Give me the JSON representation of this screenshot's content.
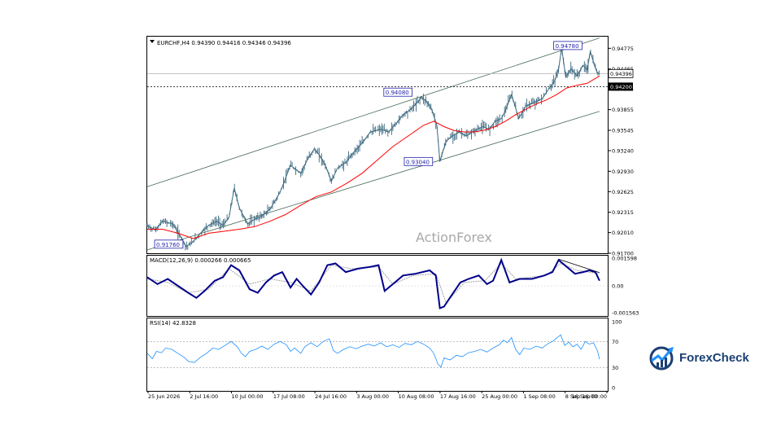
{
  "colors": {
    "price": "#3d6a80",
    "ma": "#ff0000",
    "channel": "#486a56",
    "macd": "#00008b",
    "signal": "#a0a0a0",
    "rsi": "#1e90ff",
    "label_border": "#2222aa",
    "brand": "#1b3f73",
    "brand_accent": "#1e90ff"
  },
  "chart_data": {
    "type": "line",
    "header": "EURCHF,H4  0.94390 0.94416 0.94346 0.94396",
    "watermark": "ActionForex",
    "x_tick_labels": [
      "25 Jun 2026",
      "2 Jul 16:00",
      "10 Jul 00:00",
      "17 Jul 08:00",
      "24 Jul 16:00",
      "3 Aug 00:00",
      "10 Aug 08:00",
      "17 Aug 16:00",
      "25 Aug 00:00",
      "1 Sep 08:00",
      "8 Sep 16:00",
      "16 Sep 00:00"
    ],
    "price_panel": {
      "y_ticks": [
        "0.94775",
        "0.94465",
        "0.94165",
        "0.93855",
        "0.93545",
        "0.93240",
        "0.92930",
        "0.92625",
        "0.92315",
        "0.92010",
        "0.91700"
      ],
      "ylim": [
        0.917,
        0.9495
      ],
      "last_price": "0.94396",
      "horizontal_level": "0.94200",
      "annotations": [
        "0.91760",
        "0.94080",
        "0.93040",
        "0.94780"
      ],
      "price_path": [
        [
          0,
          0.9211
        ],
        [
          8,
          0.9205
        ],
        [
          15,
          0.9218
        ],
        [
          25,
          0.9214
        ],
        [
          33,
          0.9194
        ],
        [
          38,
          0.918
        ],
        [
          44,
          0.9186
        ],
        [
          52,
          0.92
        ],
        [
          60,
          0.9212
        ],
        [
          68,
          0.9218
        ],
        [
          74,
          0.9212
        ],
        [
          80,
          0.9224
        ],
        [
          85,
          0.9268
        ],
        [
          90,
          0.9238
        ],
        [
          98,
          0.9214
        ],
        [
          106,
          0.9222
        ],
        [
          112,
          0.9226
        ],
        [
          120,
          0.9236
        ],
        [
          130,
          0.9262
        ],
        [
          140,
          0.9302
        ],
        [
          150,
          0.929
        ],
        [
          157,
          0.9312
        ],
        [
          163,
          0.9326
        ],
        [
          168,
          0.9318
        ],
        [
          174,
          0.9302
        ],
        [
          180,
          0.9278
        ],
        [
          186,
          0.9298
        ],
        [
          194,
          0.9306
        ],
        [
          202,
          0.9322
        ],
        [
          210,
          0.9335
        ],
        [
          218,
          0.9352
        ],
        [
          228,
          0.9356
        ],
        [
          236,
          0.9352
        ],
        [
          243,
          0.9364
        ],
        [
          250,
          0.9378
        ],
        [
          256,
          0.9384
        ],
        [
          262,
          0.9393
        ],
        [
          268,
          0.9404
        ],
        [
          273,
          0.9398
        ],
        [
          278,
          0.9386
        ],
        [
          283,
          0.9362
        ],
        [
          286,
          0.9308
        ],
        [
          292,
          0.9338
        ],
        [
          298,
          0.9346
        ],
        [
          305,
          0.9352
        ],
        [
          312,
          0.9346
        ],
        [
          320,
          0.9354
        ],
        [
          328,
          0.936
        ],
        [
          334,
          0.9356
        ],
        [
          340,
          0.9368
        ],
        [
          346,
          0.9372
        ],
        [
          350,
          0.9384
        ],
        [
          356,
          0.9408
        ],
        [
          360,
          0.9388
        ],
        [
          363,
          0.9372
        ],
        [
          370,
          0.9391
        ],
        [
          378,
          0.9396
        ],
        [
          386,
          0.9402
        ],
        [
          393,
          0.9418
        ],
        [
          398,
          0.9428
        ],
        [
          402,
          0.9446
        ],
        [
          405,
          0.9478
        ],
        [
          409,
          0.9434
        ],
        [
          414,
          0.9447
        ],
        [
          420,
          0.9436
        ],
        [
          426,
          0.9452
        ],
        [
          430,
          0.9445
        ],
        [
          433,
          0.9473
        ],
        [
          437,
          0.9452
        ],
        [
          440,
          0.944
        ],
        [
          442,
          0.94396
        ]
      ],
      "ma_path": [
        [
          0,
          0.9206
        ],
        [
          15,
          0.9206
        ],
        [
          30,
          0.92
        ],
        [
          45,
          0.9192
        ],
        [
          60,
          0.92
        ],
        [
          75,
          0.9203
        ],
        [
          90,
          0.9206
        ],
        [
          105,
          0.921
        ],
        [
          120,
          0.9218
        ],
        [
          135,
          0.9228
        ],
        [
          150,
          0.9242
        ],
        [
          165,
          0.9255
        ],
        [
          180,
          0.9262
        ],
        [
          195,
          0.9275
        ],
        [
          210,
          0.929
        ],
        [
          225,
          0.931
        ],
        [
          240,
          0.933
        ],
        [
          255,
          0.9346
        ],
        [
          270,
          0.9362
        ],
        [
          280,
          0.9368
        ],
        [
          290,
          0.936
        ],
        [
          300,
          0.9354
        ],
        [
          310,
          0.9352
        ],
        [
          320,
          0.9352
        ],
        [
          330,
          0.9355
        ],
        [
          340,
          0.936
        ],
        [
          350,
          0.9368
        ],
        [
          360,
          0.9378
        ],
        [
          370,
          0.9386
        ],
        [
          380,
          0.9394
        ],
        [
          390,
          0.94
        ],
        [
          400,
          0.9408
        ],
        [
          410,
          0.9418
        ],
        [
          420,
          0.9422
        ],
        [
          430,
          0.9425
        ],
        [
          442,
          0.9436
        ]
      ],
      "channel_upper": [
        [
          0,
          0.927
        ],
        [
          442,
          0.9493
        ]
      ],
      "channel_lower": [
        [
          0,
          0.9175
        ],
        [
          442,
          0.9383
        ]
      ]
    },
    "macd_panel": {
      "label": "MACD(12,26,9) 0.000266 0.000665",
      "y_ticks": [
        "0.001598",
        "0.00",
        "-0.001563"
      ],
      "ylim": [
        -0.00175,
        0.00175
      ],
      "macd_path": [
        [
          0,
          0.0005
        ],
        [
          10,
          0.0001
        ],
        [
          20,
          0.0004
        ],
        [
          30,
          0.0
        ],
        [
          40,
          -0.0004
        ],
        [
          48,
          -0.0007
        ],
        [
          56,
          -0.0003
        ],
        [
          66,
          0.0003
        ],
        [
          74,
          0.0005
        ],
        [
          82,
          0.0012
        ],
        [
          90,
          0.0009
        ],
        [
          100,
          -0.0002
        ],
        [
          108,
          -0.0004
        ],
        [
          116,
          0.0002
        ],
        [
          124,
          0.0006
        ],
        [
          132,
          0.0008
        ],
        [
          140,
          -0.0001
        ],
        [
          146,
          0.0004
        ],
        [
          152,
          0.0
        ],
        [
          160,
          -0.0005
        ],
        [
          168,
          0.0002
        ],
        [
          176,
          0.0012
        ],
        [
          184,
          0.0013
        ],
        [
          194,
          0.0008
        ],
        [
          206,
          0.001
        ],
        [
          218,
          0.0011
        ],
        [
          226,
          0.0012
        ],
        [
          232,
          -0.0003
        ],
        [
          240,
          0.0001
        ],
        [
          250,
          0.0006
        ],
        [
          262,
          0.0007
        ],
        [
          276,
          0.0009
        ],
        [
          282,
          0.0006
        ],
        [
          286,
          -0.0013
        ],
        [
          290,
          -0.0012
        ],
        [
          298,
          -0.0005
        ],
        [
          306,
          0.0002
        ],
        [
          314,
          0.0004
        ],
        [
          324,
          0.0006
        ],
        [
          332,
          0.0001
        ],
        [
          338,
          0.0003
        ],
        [
          346,
          0.0015
        ],
        [
          354,
          0.0002
        ],
        [
          364,
          0.0004
        ],
        [
          376,
          0.0004
        ],
        [
          388,
          0.0006
        ],
        [
          396,
          0.0008
        ],
        [
          402,
          0.0015
        ],
        [
          410,
          0.0011
        ],
        [
          418,
          0.0007
        ],
        [
          426,
          0.0008
        ],
        [
          432,
          0.0009
        ],
        [
          438,
          0.0008
        ],
        [
          442,
          0.0003
        ]
      ],
      "signal_path": [
        [
          0,
          0.0004
        ],
        [
          20,
          0.0002
        ],
        [
          40,
          -0.0004
        ],
        [
          60,
          -0.0002
        ],
        [
          80,
          0.001
        ],
        [
          100,
          0.0001
        ],
        [
          120,
          0.0004
        ],
        [
          140,
          0.0002
        ],
        [
          160,
          -0.0003
        ],
        [
          180,
          0.0012
        ],
        [
          200,
          0.001
        ],
        [
          226,
          0.0011
        ],
        [
          240,
          0.0001
        ],
        [
          260,
          0.0006
        ],
        [
          282,
          0.0007
        ],
        [
          292,
          -0.001
        ],
        [
          310,
          0.0002
        ],
        [
          330,
          0.0003
        ],
        [
          346,
          0.0013
        ],
        [
          360,
          0.0004
        ],
        [
          390,
          0.0006
        ],
        [
          404,
          0.0013
        ],
        [
          420,
          0.0009
        ],
        [
          442,
          0.0007
        ]
      ],
      "trendline": [
        [
          402,
          0.00155
        ],
        [
          442,
          0.00077
        ]
      ]
    },
    "rsi_panel": {
      "label": "RSI(14) 42.8328",
      "y_ticks": [
        "100",
        "70",
        "30",
        "0"
      ],
      "levels": [
        70,
        30
      ],
      "ylim": [
        0,
        100
      ],
      "rsi_path": [
        [
          0,
          52
        ],
        [
          5,
          44
        ],
        [
          9,
          55
        ],
        [
          14,
          53
        ],
        [
          18,
          60
        ],
        [
          24,
          58
        ],
        [
          30,
          52
        ],
        [
          36,
          46
        ],
        [
          40,
          40
        ],
        [
          46,
          38
        ],
        [
          52,
          46
        ],
        [
          58,
          52
        ],
        [
          64,
          60
        ],
        [
          70,
          58
        ],
        [
          76,
          64
        ],
        [
          82,
          70
        ],
        [
          88,
          62
        ],
        [
          92,
          52
        ],
        [
          96,
          47
        ],
        [
          100,
          55
        ],
        [
          106,
          58
        ],
        [
          112,
          63
        ],
        [
          118,
          58
        ],
        [
          124,
          66
        ],
        [
          130,
          70
        ],
        [
          136,
          65
        ],
        [
          140,
          55
        ],
        [
          144,
          60
        ],
        [
          150,
          52
        ],
        [
          154,
          62
        ],
        [
          160,
          68
        ],
        [
          166,
          62
        ],
        [
          172,
          70
        ],
        [
          178,
          74
        ],
        [
          182,
          56
        ],
        [
          186,
          52
        ],
        [
          192,
          58
        ],
        [
          198,
          62
        ],
        [
          204,
          59
        ],
        [
          210,
          63
        ],
        [
          216,
          66
        ],
        [
          222,
          63
        ],
        [
          228,
          68
        ],
        [
          234,
          62
        ],
        [
          240,
          65
        ],
        [
          246,
          61
        ],
        [
          252,
          67
        ],
        [
          258,
          65
        ],
        [
          264,
          70
        ],
        [
          270,
          66
        ],
        [
          276,
          60
        ],
        [
          280,
          52
        ],
        [
          284,
          36
        ],
        [
          287,
          31
        ],
        [
          290,
          45
        ],
        [
          296,
          42
        ],
        [
          302,
          49
        ],
        [
          308,
          47
        ],
        [
          314,
          53
        ],
        [
          320,
          55
        ],
        [
          326,
          58
        ],
        [
          332,
          54
        ],
        [
          338,
          60
        ],
        [
          344,
          65
        ],
        [
          348,
          72
        ],
        [
          352,
          68
        ],
        [
          356,
          76
        ],
        [
          360,
          58
        ],
        [
          364,
          50
        ],
        [
          368,
          60
        ],
        [
          374,
          58
        ],
        [
          380,
          63
        ],
        [
          386,
          60
        ],
        [
          392,
          67
        ],
        [
          396,
          70
        ],
        [
          400,
          75
        ],
        [
          404,
          80
        ],
        [
          408,
          64
        ],
        [
          412,
          69
        ],
        [
          416,
          62
        ],
        [
          420,
          66
        ],
        [
          424,
          58
        ],
        [
          428,
          70
        ],
        [
          432,
          66
        ],
        [
          436,
          68
        ],
        [
          440,
          56
        ],
        [
          442,
          43
        ]
      ]
    }
  },
  "brand": {
    "name": "ForexCheck"
  }
}
